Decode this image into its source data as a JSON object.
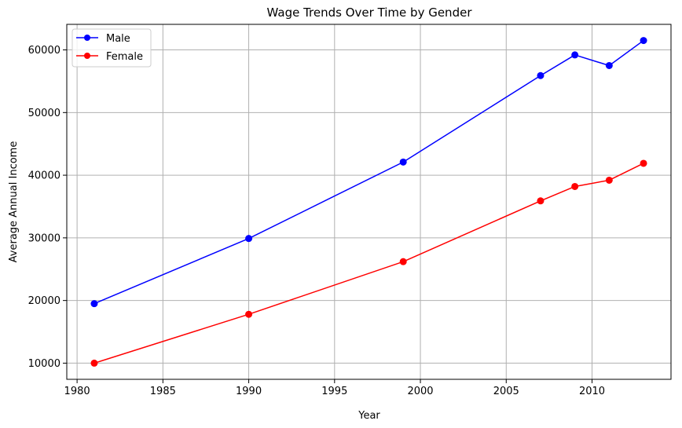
{
  "chart_data": {
    "type": "line",
    "title": "Wage Trends Over Time by Gender",
    "xlabel": "Year",
    "ylabel": "Average Annual Income",
    "xlim": [
      1979.4,
      2014.6
    ],
    "ylim": [
      7420,
      64080
    ],
    "x_ticks": [
      1980,
      1985,
      1990,
      1995,
      2000,
      2005,
      2010
    ],
    "y_ticks": [
      10000,
      20000,
      30000,
      40000,
      50000,
      60000
    ],
    "grid": true,
    "legend_position": "top-left",
    "x": [
      1981,
      1990,
      1999,
      2007,
      2009,
      2011,
      2013
    ],
    "series": [
      {
        "name": "Male",
        "color": "#0000ff",
        "marker": "circle",
        "values": [
          19500,
          29900,
          42100,
          55900,
          59200,
          57500,
          61500
        ]
      },
      {
        "name": "Female",
        "color": "#ff0000",
        "marker": "circle",
        "values": [
          10000,
          17800,
          26200,
          35900,
          38200,
          39200,
          41900
        ]
      }
    ]
  }
}
